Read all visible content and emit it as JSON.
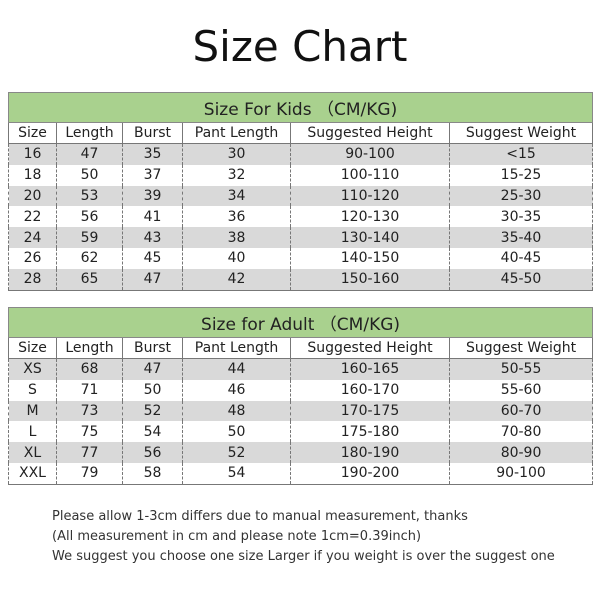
{
  "title": "Size Chart",
  "kids_table": {
    "title": "Size For Kids （CM/KG)",
    "columns": [
      "Size",
      "Length",
      "Burst",
      "Pant Length",
      "Suggested Height",
      "Suggest Weight"
    ],
    "rows": [
      [
        "16",
        "47",
        "35",
        "30",
        "90-100",
        "<15"
      ],
      [
        "18",
        "50",
        "37",
        "32",
        "100-110",
        "15-25"
      ],
      [
        "20",
        "53",
        "39",
        "34",
        "110-120",
        "25-30"
      ],
      [
        "22",
        "56",
        "41",
        "36",
        "120-130",
        "30-35"
      ],
      [
        "24",
        "59",
        "43",
        "38",
        "130-140",
        "35-40"
      ],
      [
        "26",
        "62",
        "45",
        "40",
        "140-150",
        "40-45"
      ],
      [
        "28",
        "65",
        "47",
        "42",
        "150-160",
        "45-50"
      ]
    ]
  },
  "adult_table": {
    "title": "Size for Adult （CM/KG)",
    "columns": [
      "Size",
      "Length",
      "Burst",
      "Pant Length",
      "Suggested Height",
      "Suggest Weight"
    ],
    "rows": [
      [
        "XS",
        "68",
        "47",
        "44",
        "160-165",
        "50-55"
      ],
      [
        "S",
        "71",
        "50",
        "46",
        "160-170",
        "55-60"
      ],
      [
        "M",
        "73",
        "52",
        "48",
        "170-175",
        "60-70"
      ],
      [
        "L",
        "75",
        "54",
        "50",
        "175-180",
        "70-80"
      ],
      [
        "XL",
        "77",
        "56",
        "52",
        "180-190",
        "80-90"
      ],
      [
        "XXL",
        "79",
        "58",
        "54",
        "190-200",
        "90-100"
      ]
    ]
  },
  "notes": [
    "Please allow 1-3cm differs due to manual measurement, thanks",
    "(All measurement in cm and please note 1cm=0.39inch)",
    "We suggest you choose one size Larger if you weight is over the suggest one"
  ]
}
